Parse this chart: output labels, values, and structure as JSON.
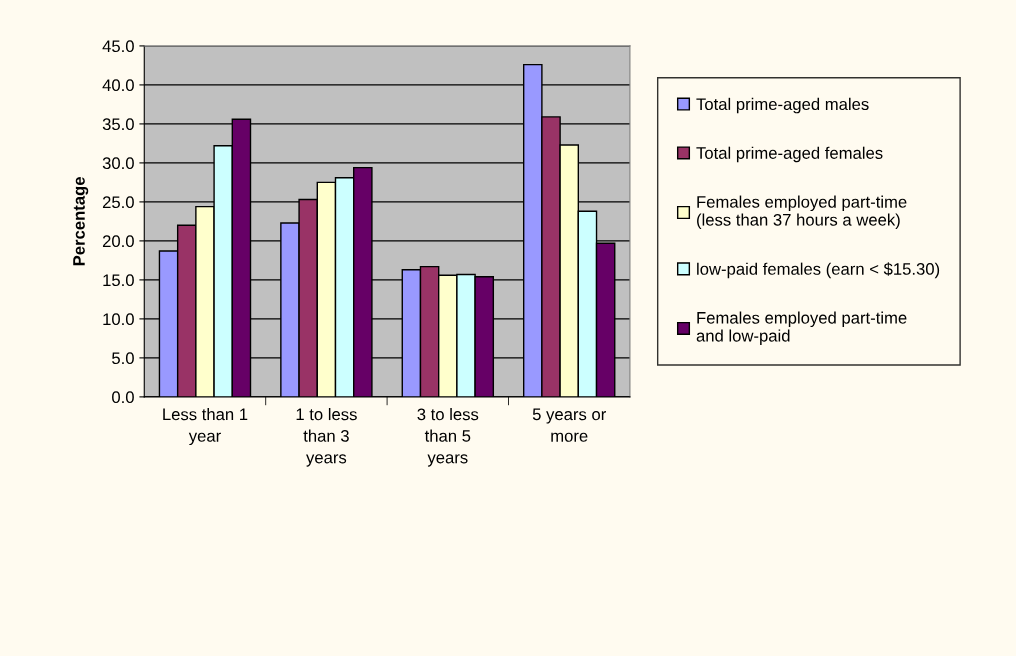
{
  "chart_data": {
    "type": "bar",
    "ylabel": "Percentage",
    "categories": [
      "Less than 1\nyear",
      "1 to less\nthan 3\nyears",
      "3 to less\nthan 5\nyears",
      "5 years or\nmore"
    ],
    "series": [
      {
        "name": "Total prime-aged males",
        "color": "#9999ff",
        "values": [
          18.7,
          22.3,
          16.3,
          42.6
        ]
      },
      {
        "name": "Total prime-aged females",
        "color": "#993366",
        "values": [
          22.0,
          25.3,
          16.7,
          35.9
        ]
      },
      {
        "name": "Females employed part-time\n(less than 37 hours a week)",
        "color": "#ffffcc",
        "values": [
          24.4,
          27.5,
          15.6,
          32.3
        ]
      },
      {
        "name": "low-paid females (earn < $15.30)",
        "color": "#ccffff",
        "values": [
          32.2,
          28.1,
          15.7,
          23.8
        ]
      },
      {
        "name": "Females employed part-time\nand low-paid",
        "color": "#660066",
        "values": [
          35.6,
          29.4,
          15.4,
          19.7
        ]
      }
    ],
    "ylim": [
      0,
      45
    ],
    "yticks": [
      {
        "value": 0,
        "label": "0.0"
      },
      {
        "value": 5,
        "label": "5.0"
      },
      {
        "value": 10,
        "label": "10.0"
      },
      {
        "value": 15,
        "label": "15.0"
      },
      {
        "value": 20,
        "label": "20.0"
      },
      {
        "value": 25,
        "label": "25.0"
      },
      {
        "value": 30,
        "label": "30.0"
      },
      {
        "value": 35,
        "label": "35.0"
      },
      {
        "value": 40,
        "label": "40.0"
      },
      {
        "value": 45,
        "label": "45.0"
      }
    ],
    "grid": "y",
    "legend": "right"
  }
}
